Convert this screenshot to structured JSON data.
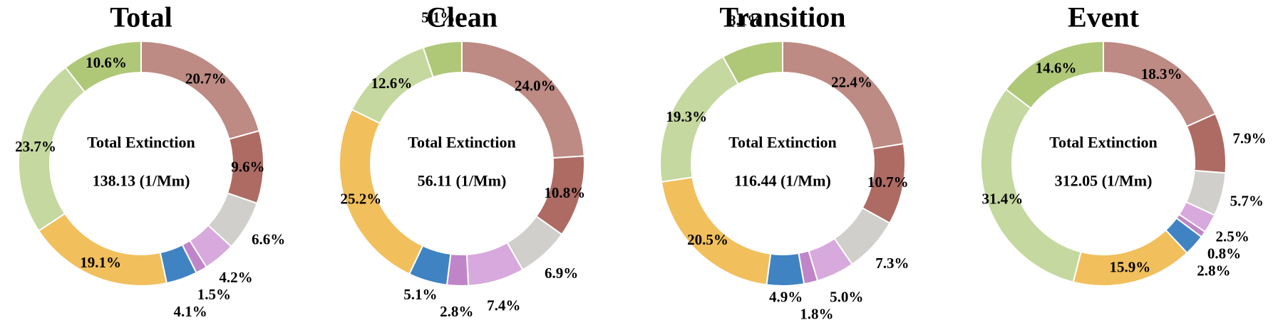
{
  "colors": {
    "c1": "#bd8a84",
    "c2": "#ad6b64",
    "c3": "#d0cfcb",
    "c4": "#d7a9dc",
    "c5": "#c085c8",
    "c6": "#3f83c3",
    "c7": "#f1bf5c",
    "c8": "#c5d89f",
    "c9": "#afc878"
  },
  "chart_data": [
    {
      "type": "pie",
      "title": "Total",
      "center_label": "Total Extinction",
      "center_value": "138.13 (1/Mm)",
      "values": [
        20.7,
        9.6,
        6.6,
        4.2,
        1.5,
        4.1,
        19.1,
        23.7,
        10.6
      ],
      "labels": [
        "20.7%",
        "9.6%",
        "6.6%",
        "4.2%",
        "1.5%",
        "4.1%",
        "19.1%",
        "23.7%",
        "10.6%"
      ]
    },
    {
      "type": "pie",
      "title": "Clean",
      "center_label": "Total Extinction",
      "center_value": "56.11 (1/Mm)",
      "values": [
        24.0,
        10.8,
        6.9,
        7.4,
        2.8,
        5.1,
        25.2,
        12.6,
        5.1
      ],
      "labels": [
        "24.0%",
        "10.8%",
        "6.9%",
        "7.4%",
        "2.8%",
        "5.1%",
        "25.2%",
        "12.6%",
        "5.1%"
      ]
    },
    {
      "type": "pie",
      "title": "Transition",
      "center_label": "Total Extinction",
      "center_value": "116.44 (1/Mm)",
      "values": [
        22.4,
        10.7,
        7.3,
        5.0,
        1.8,
        4.9,
        20.5,
        19.3,
        8.1
      ],
      "labels": [
        "22.4%",
        "10.7%",
        "7.3%",
        "5.0%",
        "1.8%",
        "4.9%",
        "20.5%",
        "19.3%",
        "8.1%"
      ]
    },
    {
      "type": "pie",
      "title": "Event",
      "center_label": "Total Extinction",
      "center_value": "312.05 (1/Mm)",
      "values": [
        18.3,
        7.9,
        5.7,
        2.5,
        0.8,
        2.8,
        15.9,
        31.4,
        14.6
      ],
      "labels": [
        "18.3%",
        "7.9%",
        "5.7%",
        "2.5%",
        "0.8%",
        "2.8%",
        "15.9%",
        "31.4%",
        "14.6%"
      ]
    }
  ]
}
